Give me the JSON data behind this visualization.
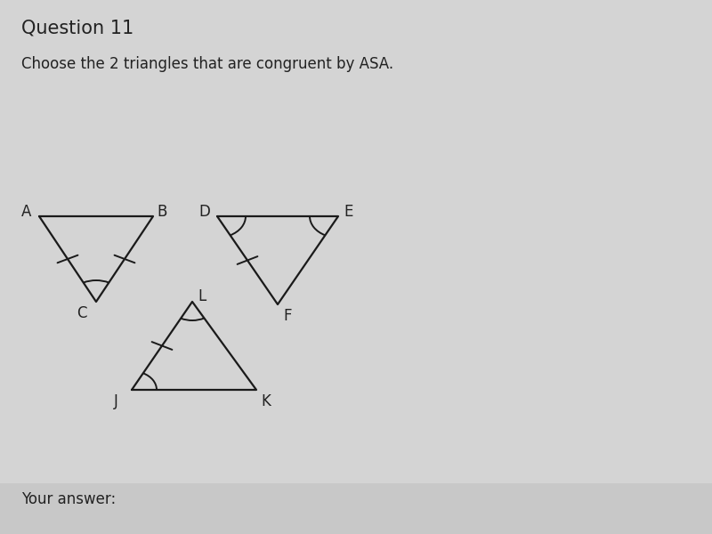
{
  "title": "Question 11",
  "subtitle": "Choose the 2 triangles that are congruent by ASA.",
  "bg_color": "#d4d4d4",
  "line_color": "#1a1a1a",
  "text_color": "#222222",
  "font_size_title": 15,
  "font_size_sub": 12,
  "font_size_label": 12,
  "your_answer_text": "Your answer:",
  "triangles": {
    "ABC": {
      "A": [
        0.055,
        0.595
      ],
      "B": [
        0.215,
        0.595
      ],
      "C": [
        0.135,
        0.435
      ],
      "label_offsets": {
        "A": [
          -0.018,
          0.008
        ],
        "B": [
          0.012,
          0.008
        ],
        "C": [
          -0.02,
          -0.022
        ]
      },
      "tick_sides": [
        [
          "A",
          "C"
        ],
        [
          "B",
          "C"
        ]
      ],
      "arc_vertices": [
        [
          "C",
          "A",
          "B"
        ]
      ]
    },
    "DEF": {
      "D": [
        0.305,
        0.595
      ],
      "E": [
        0.475,
        0.595
      ],
      "F": [
        0.39,
        0.43
      ],
      "label_offsets": {
        "D": [
          -0.018,
          0.008
        ],
        "E": [
          0.014,
          0.008
        ],
        "F": [
          0.014,
          -0.022
        ]
      },
      "tick_sides": [
        [
          "D",
          "F"
        ]
      ],
      "arc_vertices": [
        [
          "D",
          "E",
          "F"
        ],
        [
          "E",
          "D",
          "F"
        ]
      ]
    },
    "JLK": {
      "J": [
        0.185,
        0.27
      ],
      "L": [
        0.27,
        0.435
      ],
      "K": [
        0.36,
        0.27
      ],
      "label_offsets": {
        "J": [
          -0.022,
          -0.022
        ],
        "L": [
          0.014,
          0.01
        ],
        "K": [
          0.014,
          -0.022
        ]
      },
      "tick_sides": [
        [
          "J",
          "L"
        ]
      ],
      "arc_vertices": [
        [
          "L",
          "J",
          "K"
        ],
        [
          "J",
          "L",
          "K"
        ]
      ]
    }
  }
}
